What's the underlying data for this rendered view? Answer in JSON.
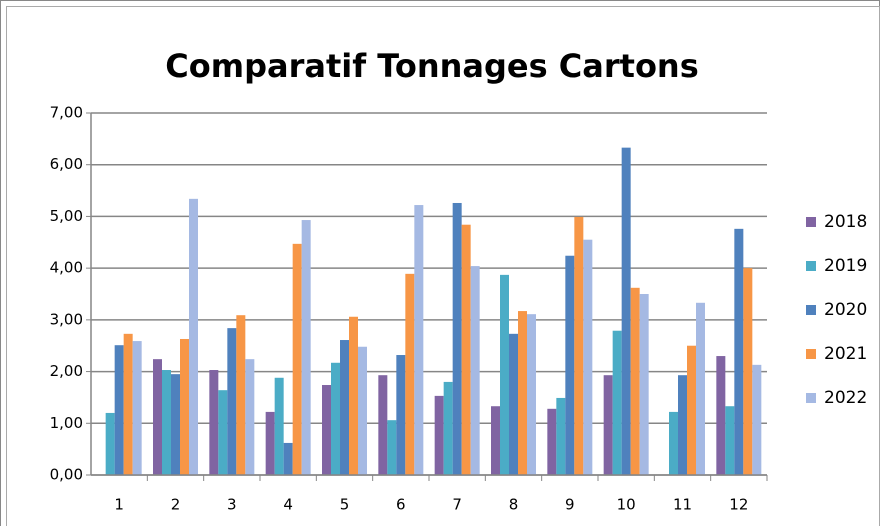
{
  "chart_data": {
    "type": "bar",
    "title": "Comparatif Tonnages Cartons",
    "categories": [
      "1",
      "2",
      "3",
      "4",
      "5",
      "6",
      "7",
      "8",
      "9",
      "10",
      "11",
      "12"
    ],
    "series": [
      {
        "name": "2018",
        "color": "#8064a2",
        "values": [
          null,
          2.24,
          2.03,
          1.22,
          1.74,
          1.93,
          1.53,
          1.33,
          1.28,
          1.93,
          null,
          2.3
        ]
      },
      {
        "name": "2019",
        "color": "#4bacc6",
        "values": [
          1.2,
          2.03,
          1.64,
          1.88,
          2.17,
          1.06,
          1.8,
          3.87,
          1.49,
          2.79,
          1.22,
          1.33
        ]
      },
      {
        "name": "2020",
        "color": "#4f81bd",
        "values": [
          2.51,
          1.95,
          2.84,
          0.62,
          2.61,
          2.32,
          5.26,
          2.73,
          4.24,
          6.33,
          1.93,
          4.76
        ]
      },
      {
        "name": "2021",
        "color": "#f79646",
        "values": [
          2.73,
          2.63,
          3.09,
          4.47,
          3.06,
          3.89,
          4.84,
          3.17,
          4.99,
          3.62,
          2.5,
          4.0
        ]
      },
      {
        "name": "2022",
        "color": "#a5b9e3",
        "values": [
          2.59,
          5.34,
          2.24,
          4.93,
          2.48,
          5.22,
          4.04,
          3.11,
          4.55,
          3.5,
          3.33,
          2.13
        ]
      }
    ],
    "ylim": [
      0,
      7
    ],
    "yticks": [
      {
        "value": 0,
        "label": "0,00"
      },
      {
        "value": 1,
        "label": "1,00"
      },
      {
        "value": 2,
        "label": "2,00"
      },
      {
        "value": 3,
        "label": "3,00"
      },
      {
        "value": 4,
        "label": "4,00"
      },
      {
        "value": 5,
        "label": "5,00"
      },
      {
        "value": 6,
        "label": "6,00"
      },
      {
        "value": 7,
        "label": "7,00"
      }
    ],
    "grid": true,
    "legend": "right"
  }
}
